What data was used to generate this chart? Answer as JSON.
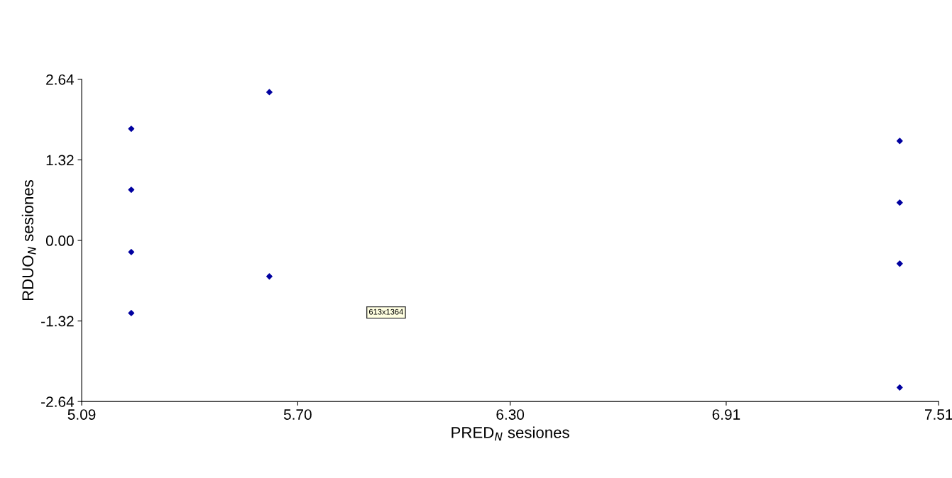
{
  "chart_data": {
    "type": "scatter",
    "xlabel": "PRED$_{N}$ sesiones",
    "ylabel": "RDUO$_{N}$ sesiones",
    "x": [
      5.23,
      5.23,
      5.23,
      5.23,
      5.62,
      5.62,
      7.4,
      7.4,
      7.4,
      7.4
    ],
    "series": [
      {
        "color": "#0000a0",
        "values": [
          1.83,
          0.83,
          -0.19,
          -1.19,
          2.43,
          -0.59,
          1.63,
          0.62,
          -0.38,
          -2.41
        ]
      }
    ],
    "xlim": [
      5.09,
      7.51
    ],
    "ylim": [
      -2.64,
      2.64
    ],
    "xticks": [
      {
        "value": 5.09,
        "label": "5.09"
      },
      {
        "value": 5.7,
        "label": "5.70"
      },
      {
        "value": 6.3,
        "label": "6.30"
      },
      {
        "value": 6.91,
        "label": "6.91"
      },
      {
        "value": 7.51,
        "label": "7.51"
      }
    ],
    "yticks": [
      {
        "value": -2.64,
        "label": "-2.64"
      },
      {
        "value": -1.32,
        "label": "-1.32"
      },
      {
        "value": 0,
        "label": "0.00"
      },
      {
        "value": 1.32,
        "label": "1.32"
      },
      {
        "value": 2.64,
        "label": "2.64"
      }
    ],
    "marker": "diamond",
    "grid": false,
    "legend": false,
    "annotations": [
      "613x1364"
    ]
  }
}
